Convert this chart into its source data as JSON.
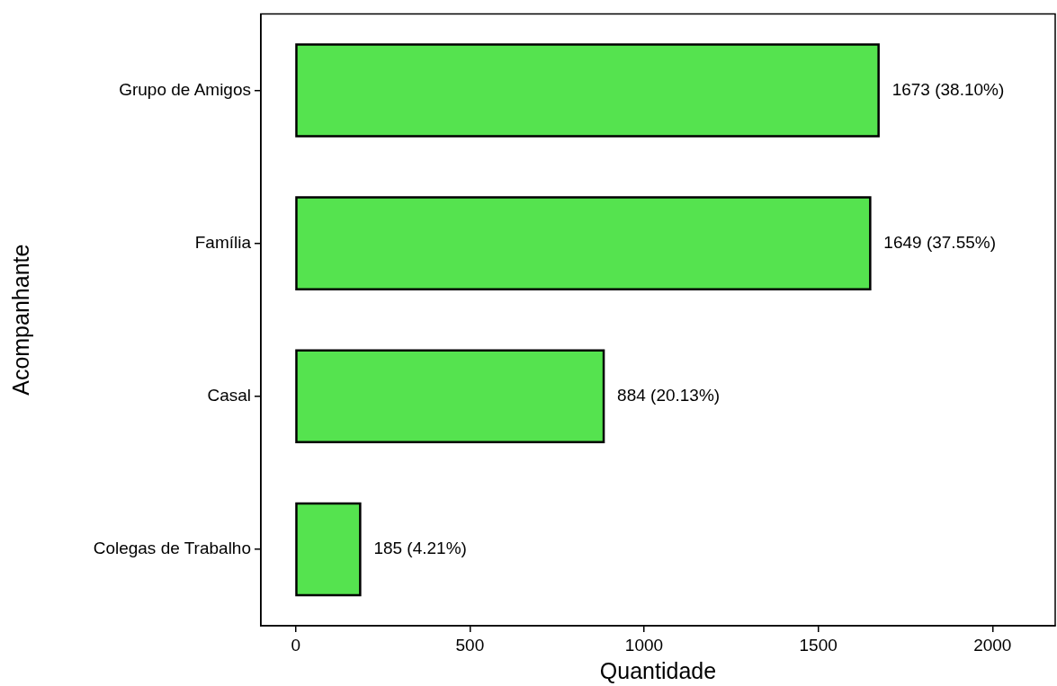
{
  "chart_data": {
    "type": "bar",
    "orientation": "horizontal",
    "xlabel": "Quantidade",
    "ylabel": "Acompanhante",
    "categories": [
      "Grupo de Amigos",
      "Família",
      "Casal",
      "Colegas de Trabalho"
    ],
    "values": [
      1673,
      1649,
      884,
      185
    ],
    "value_labels": [
      "1673 (38.10%)",
      "1649 (37.55%)",
      "884 (20.13%)",
      "185 (4.21%)"
    ],
    "color": "#55e34f",
    "xlim": [
      -100,
      2180
    ],
    "xticks": [
      0,
      500,
      1000,
      1500,
      2000
    ],
    "grid": false,
    "legend": false
  }
}
